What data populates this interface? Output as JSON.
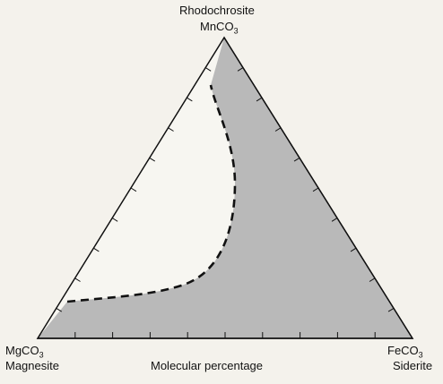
{
  "diagram": {
    "top": {
      "name": "Rhodochrosite",
      "formula_base": "MnCO",
      "formula_sub": "3"
    },
    "left": {
      "formula_base": "MgCO",
      "formula_sub": "3",
      "name": "Magnesite"
    },
    "right": {
      "formula_base": "FeCO",
      "formula_sub": "3",
      "name": "Siderite"
    },
    "axis_label": "Molecular percentage",
    "colors": {
      "fill": "#b9b9b9",
      "stroke": "#111111",
      "background": "#f7f6f1"
    }
  }
}
